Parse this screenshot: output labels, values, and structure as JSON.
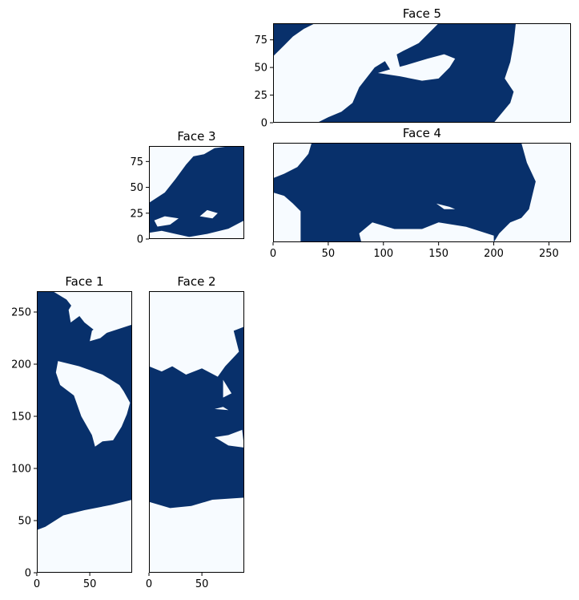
{
  "colors": {
    "ocean": "#08306b",
    "land": "#f7fbff",
    "axis": "#000000"
  },
  "chart_data": [
    {
      "type": "heatmap",
      "title": "Face 1",
      "xlim": [
        0,
        90
      ],
      "ylim": [
        0,
        270
      ],
      "xticks": [
        {
          "value": 0,
          "label": "0"
        },
        {
          "value": 50,
          "label": "50"
        }
      ],
      "yticks": [
        {
          "value": 0,
          "label": "0"
        },
        {
          "value": 50,
          "label": "50"
        },
        {
          "value": 100,
          "label": "100"
        },
        {
          "value": 150,
          "label": "150"
        },
        {
          "value": 200,
          "label": "200"
        },
        {
          "value": 250,
          "label": "250"
        }
      ],
      "colormap": "Blues",
      "values_meaning": "ocean mask (ocean = dark blue, land = white)",
      "ocean_regions": [
        [
          [
            0,
            41
          ],
          [
            8,
            44
          ],
          [
            25,
            55
          ],
          [
            45,
            60
          ],
          [
            70,
            65
          ],
          [
            90,
            70
          ],
          [
            90,
            238
          ],
          [
            60,
            228
          ],
          [
            45,
            240
          ],
          [
            28,
            262
          ],
          [
            15,
            270
          ],
          [
            0,
            270
          ]
        ]
      ],
      "land_regions": [
        [
          [
            20,
            203
          ],
          [
            40,
            198
          ],
          [
            62,
            190
          ],
          [
            78,
            180
          ],
          [
            82,
            174
          ],
          [
            88,
            163
          ],
          [
            85,
            152
          ],
          [
            80,
            140
          ],
          [
            72,
            127
          ],
          [
            62,
            126
          ],
          [
            55,
            121
          ],
          [
            52,
            132
          ],
          [
            42,
            150
          ],
          [
            35,
            170
          ],
          [
            22,
            180
          ],
          [
            18,
            192
          ]
        ],
        [
          [
            52,
            232
          ],
          [
            62,
            240
          ],
          [
            70,
            255
          ],
          [
            84,
            268
          ],
          [
            88,
            265
          ],
          [
            85,
            250
          ],
          [
            78,
            240
          ],
          [
            60,
            225
          ],
          [
            50,
            222
          ]
        ],
        [
          [
            32,
            240
          ],
          [
            40,
            246
          ],
          [
            44,
            256
          ],
          [
            36,
            262
          ],
          [
            30,
            252
          ]
        ]
      ]
    },
    {
      "type": "heatmap",
      "title": "Face 2",
      "xlim": [
        0,
        90
      ],
      "ylim": [
        0,
        270
      ],
      "xticks": [
        {
          "value": 0,
          "label": "0"
        },
        {
          "value": 50,
          "label": "50"
        }
      ],
      "yticks": [],
      "colormap": "Blues",
      "values_meaning": "ocean mask (ocean = dark blue, land = white)",
      "ocean_regions": [
        [
          [
            0,
            68
          ],
          [
            20,
            62
          ],
          [
            40,
            64
          ],
          [
            60,
            70
          ],
          [
            90,
            72
          ],
          [
            90,
            236
          ],
          [
            80,
            232
          ],
          [
            85,
            212
          ],
          [
            72,
            198
          ],
          [
            65,
            188
          ],
          [
            50,
            196
          ],
          [
            35,
            190
          ],
          [
            22,
            198
          ],
          [
            12,
            193
          ],
          [
            0,
            198
          ]
        ]
      ],
      "land_regions": [
        [
          [
            62,
            130
          ],
          [
            75,
            132
          ],
          [
            88,
            137
          ],
          [
            90,
            120
          ],
          [
            75,
            122
          ]
        ],
        [
          [
            62,
            157
          ],
          [
            70,
            159
          ],
          [
            75,
            156
          ]
        ],
        [
          [
            70,
            185
          ],
          [
            78,
            172
          ],
          [
            70,
            168
          ]
        ]
      ]
    },
    {
      "type": "heatmap",
      "title": "Face 3",
      "xlim": [
        0,
        90
      ],
      "ylim": [
        0,
        90
      ],
      "xticks": [],
      "yticks": [
        {
          "value": 0,
          "label": "0"
        },
        {
          "value": 25,
          "label": "25"
        },
        {
          "value": 50,
          "label": "50"
        },
        {
          "value": 75,
          "label": "75"
        }
      ],
      "colormap": "Blues",
      "values_meaning": "ocean mask (ocean = dark blue, land = white)",
      "ocean_regions": [
        [
          [
            0,
            35
          ],
          [
            15,
            45
          ],
          [
            25,
            58
          ],
          [
            35,
            72
          ],
          [
            42,
            80
          ],
          [
            52,
            82
          ],
          [
            62,
            88
          ],
          [
            78,
            90
          ],
          [
            90,
            90
          ],
          [
            90,
            18
          ],
          [
            75,
            10
          ],
          [
            55,
            5
          ],
          [
            38,
            2
          ],
          [
            25,
            5
          ],
          [
            12,
            8
          ],
          [
            0,
            6
          ]
        ]
      ],
      "land_regions": [
        [
          [
            8,
            12
          ],
          [
            20,
            14
          ],
          [
            28,
            20
          ],
          [
            15,
            22
          ],
          [
            5,
            18
          ]
        ],
        [
          [
            48,
            22
          ],
          [
            60,
            20
          ],
          [
            65,
            25
          ],
          [
            55,
            28
          ]
        ]
      ]
    },
    {
      "type": "heatmap",
      "title": "Face 4",
      "xlim": [
        0,
        270
      ],
      "ylim": [
        0,
        90
      ],
      "xticks": [
        {
          "value": 0,
          "label": "0"
        },
        {
          "value": 50,
          "label": "50"
        },
        {
          "value": 100,
          "label": "100"
        },
        {
          "value": 150,
          "label": "150"
        },
        {
          "value": 200,
          "label": "200"
        },
        {
          "value": 250,
          "label": "250"
        }
      ],
      "yticks": [],
      "colormap": "Blues",
      "values_meaning": "ocean mask (ocean = dark blue, land = white)",
      "ocean_regions": [
        [
          [
            0,
            58
          ],
          [
            10,
            62
          ],
          [
            22,
            68
          ],
          [
            32,
            80
          ],
          [
            35,
            90
          ],
          [
            225,
            90
          ],
          [
            230,
            72
          ],
          [
            238,
            55
          ],
          [
            232,
            30
          ],
          [
            225,
            22
          ],
          [
            215,
            18
          ],
          [
            205,
            8
          ],
          [
            200,
            0
          ],
          [
            25,
            0
          ],
          [
            25,
            28
          ],
          [
            18,
            35
          ],
          [
            10,
            42
          ],
          [
            0,
            45
          ]
        ]
      ],
      "land_regions": [
        [
          [
            90,
            18
          ],
          [
            110,
            12
          ],
          [
            135,
            12
          ],
          [
            150,
            18
          ],
          [
            175,
            14
          ],
          [
            200,
            6
          ],
          [
            200,
            0
          ],
          [
            80,
            0
          ],
          [
            78,
            8
          ]
        ],
        [
          [
            148,
            35
          ],
          [
            160,
            32
          ],
          [
            165,
            30
          ],
          [
            155,
            30
          ]
        ]
      ]
    },
    {
      "type": "heatmap",
      "title": "Face 5",
      "xlim": [
        0,
        270
      ],
      "ylim": [
        0,
        90
      ],
      "xticks": [],
      "yticks": [
        {
          "value": 0,
          "label": "0"
        },
        {
          "value": 25,
          "label": "25"
        },
        {
          "value": 50,
          "label": "50"
        },
        {
          "value": 75,
          "label": "75"
        }
      ],
      "colormap": "Blues",
      "values_meaning": "ocean mask (ocean = dark blue, land = white)",
      "ocean_regions": [
        [
          [
            40,
            0
          ],
          [
            200,
            0
          ],
          [
            215,
            18
          ],
          [
            218,
            28
          ],
          [
            210,
            40
          ],
          [
            215,
            55
          ],
          [
            218,
            72
          ],
          [
            220,
            90
          ],
          [
            150,
            90
          ],
          [
            140,
            80
          ],
          [
            132,
            72
          ],
          [
            118,
            65
          ],
          [
            105,
            58
          ],
          [
            92,
            50
          ],
          [
            78,
            32
          ],
          [
            72,
            18
          ],
          [
            62,
            10
          ],
          [
            50,
            5
          ]
        ],
        [
          [
            0,
            60
          ],
          [
            10,
            70
          ],
          [
            18,
            78
          ],
          [
            28,
            85
          ],
          [
            38,
            90
          ],
          [
            0,
            90
          ]
        ]
      ],
      "land_regions": [
        [
          [
            95,
            45
          ],
          [
            115,
            42
          ],
          [
            135,
            38
          ],
          [
            150,
            40
          ],
          [
            160,
            50
          ],
          [
            165,
            58
          ],
          [
            155,
            62
          ],
          [
            140,
            58
          ],
          [
            120,
            52
          ],
          [
            105,
            48
          ]
        ],
        [
          [
            100,
            58
          ],
          [
            112,
            62
          ],
          [
            115,
            50
          ],
          [
            108,
            45
          ]
        ],
        [
          [
            20,
            40
          ],
          [
            30,
            45
          ],
          [
            35,
            55
          ],
          [
            28,
            60
          ],
          [
            22,
            52
          ]
        ]
      ]
    }
  ]
}
